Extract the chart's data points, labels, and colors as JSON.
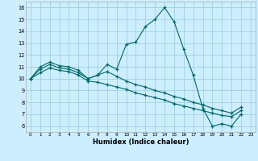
{
  "xlabel": "Humidex (Indice chaleur)",
  "bg_color": "#cceeff",
  "line_color": "#006666",
  "grid_color": "#99cccc",
  "xlim": [
    -0.5,
    23.5
  ],
  "ylim": [
    5.5,
    16.5
  ],
  "yticks": [
    6,
    7,
    8,
    9,
    10,
    11,
    12,
    13,
    14,
    15,
    16
  ],
  "xticks": [
    0,
    1,
    2,
    3,
    4,
    5,
    6,
    7,
    8,
    9,
    10,
    11,
    12,
    13,
    14,
    15,
    16,
    17,
    18,
    19,
    20,
    21,
    22,
    23
  ],
  "line1_x": [
    0,
    1,
    2,
    3,
    4,
    5,
    6,
    7,
    8,
    9,
    10,
    11,
    12,
    13,
    14,
    15,
    16,
    17,
    18,
    19,
    20,
    21,
    22
  ],
  "line1_y": [
    10.0,
    11.0,
    11.4,
    11.1,
    11.0,
    10.7,
    10.0,
    10.3,
    11.2,
    10.8,
    12.9,
    13.1,
    14.4,
    15.0,
    16.0,
    14.8,
    12.5,
    10.3,
    7.5,
    6.0,
    6.2,
    6.0,
    7.0
  ],
  "line2_x": [
    0,
    1,
    2,
    3,
    4,
    5,
    6,
    7,
    8,
    9,
    10,
    11,
    12,
    13,
    14,
    15,
    16,
    17,
    18,
    19,
    20,
    21,
    22
  ],
  "line2_y": [
    10.0,
    10.5,
    10.9,
    10.7,
    10.6,
    10.3,
    9.8,
    9.7,
    9.5,
    9.3,
    9.1,
    8.8,
    8.6,
    8.4,
    8.2,
    7.9,
    7.7,
    7.5,
    7.3,
    7.1,
    6.9,
    6.8,
    7.3
  ],
  "line3_x": [
    0,
    1,
    2,
    3,
    4,
    5,
    6,
    7,
    8,
    9,
    10,
    11,
    12,
    13,
    14,
    15,
    16,
    17,
    18,
    19,
    20,
    21,
    22
  ],
  "line3_y": [
    10.0,
    10.8,
    11.2,
    10.9,
    10.8,
    10.5,
    10.0,
    10.3,
    10.6,
    10.2,
    9.8,
    9.5,
    9.3,
    9.0,
    8.8,
    8.5,
    8.3,
    8.0,
    7.8,
    7.5,
    7.3,
    7.1,
    7.6
  ]
}
